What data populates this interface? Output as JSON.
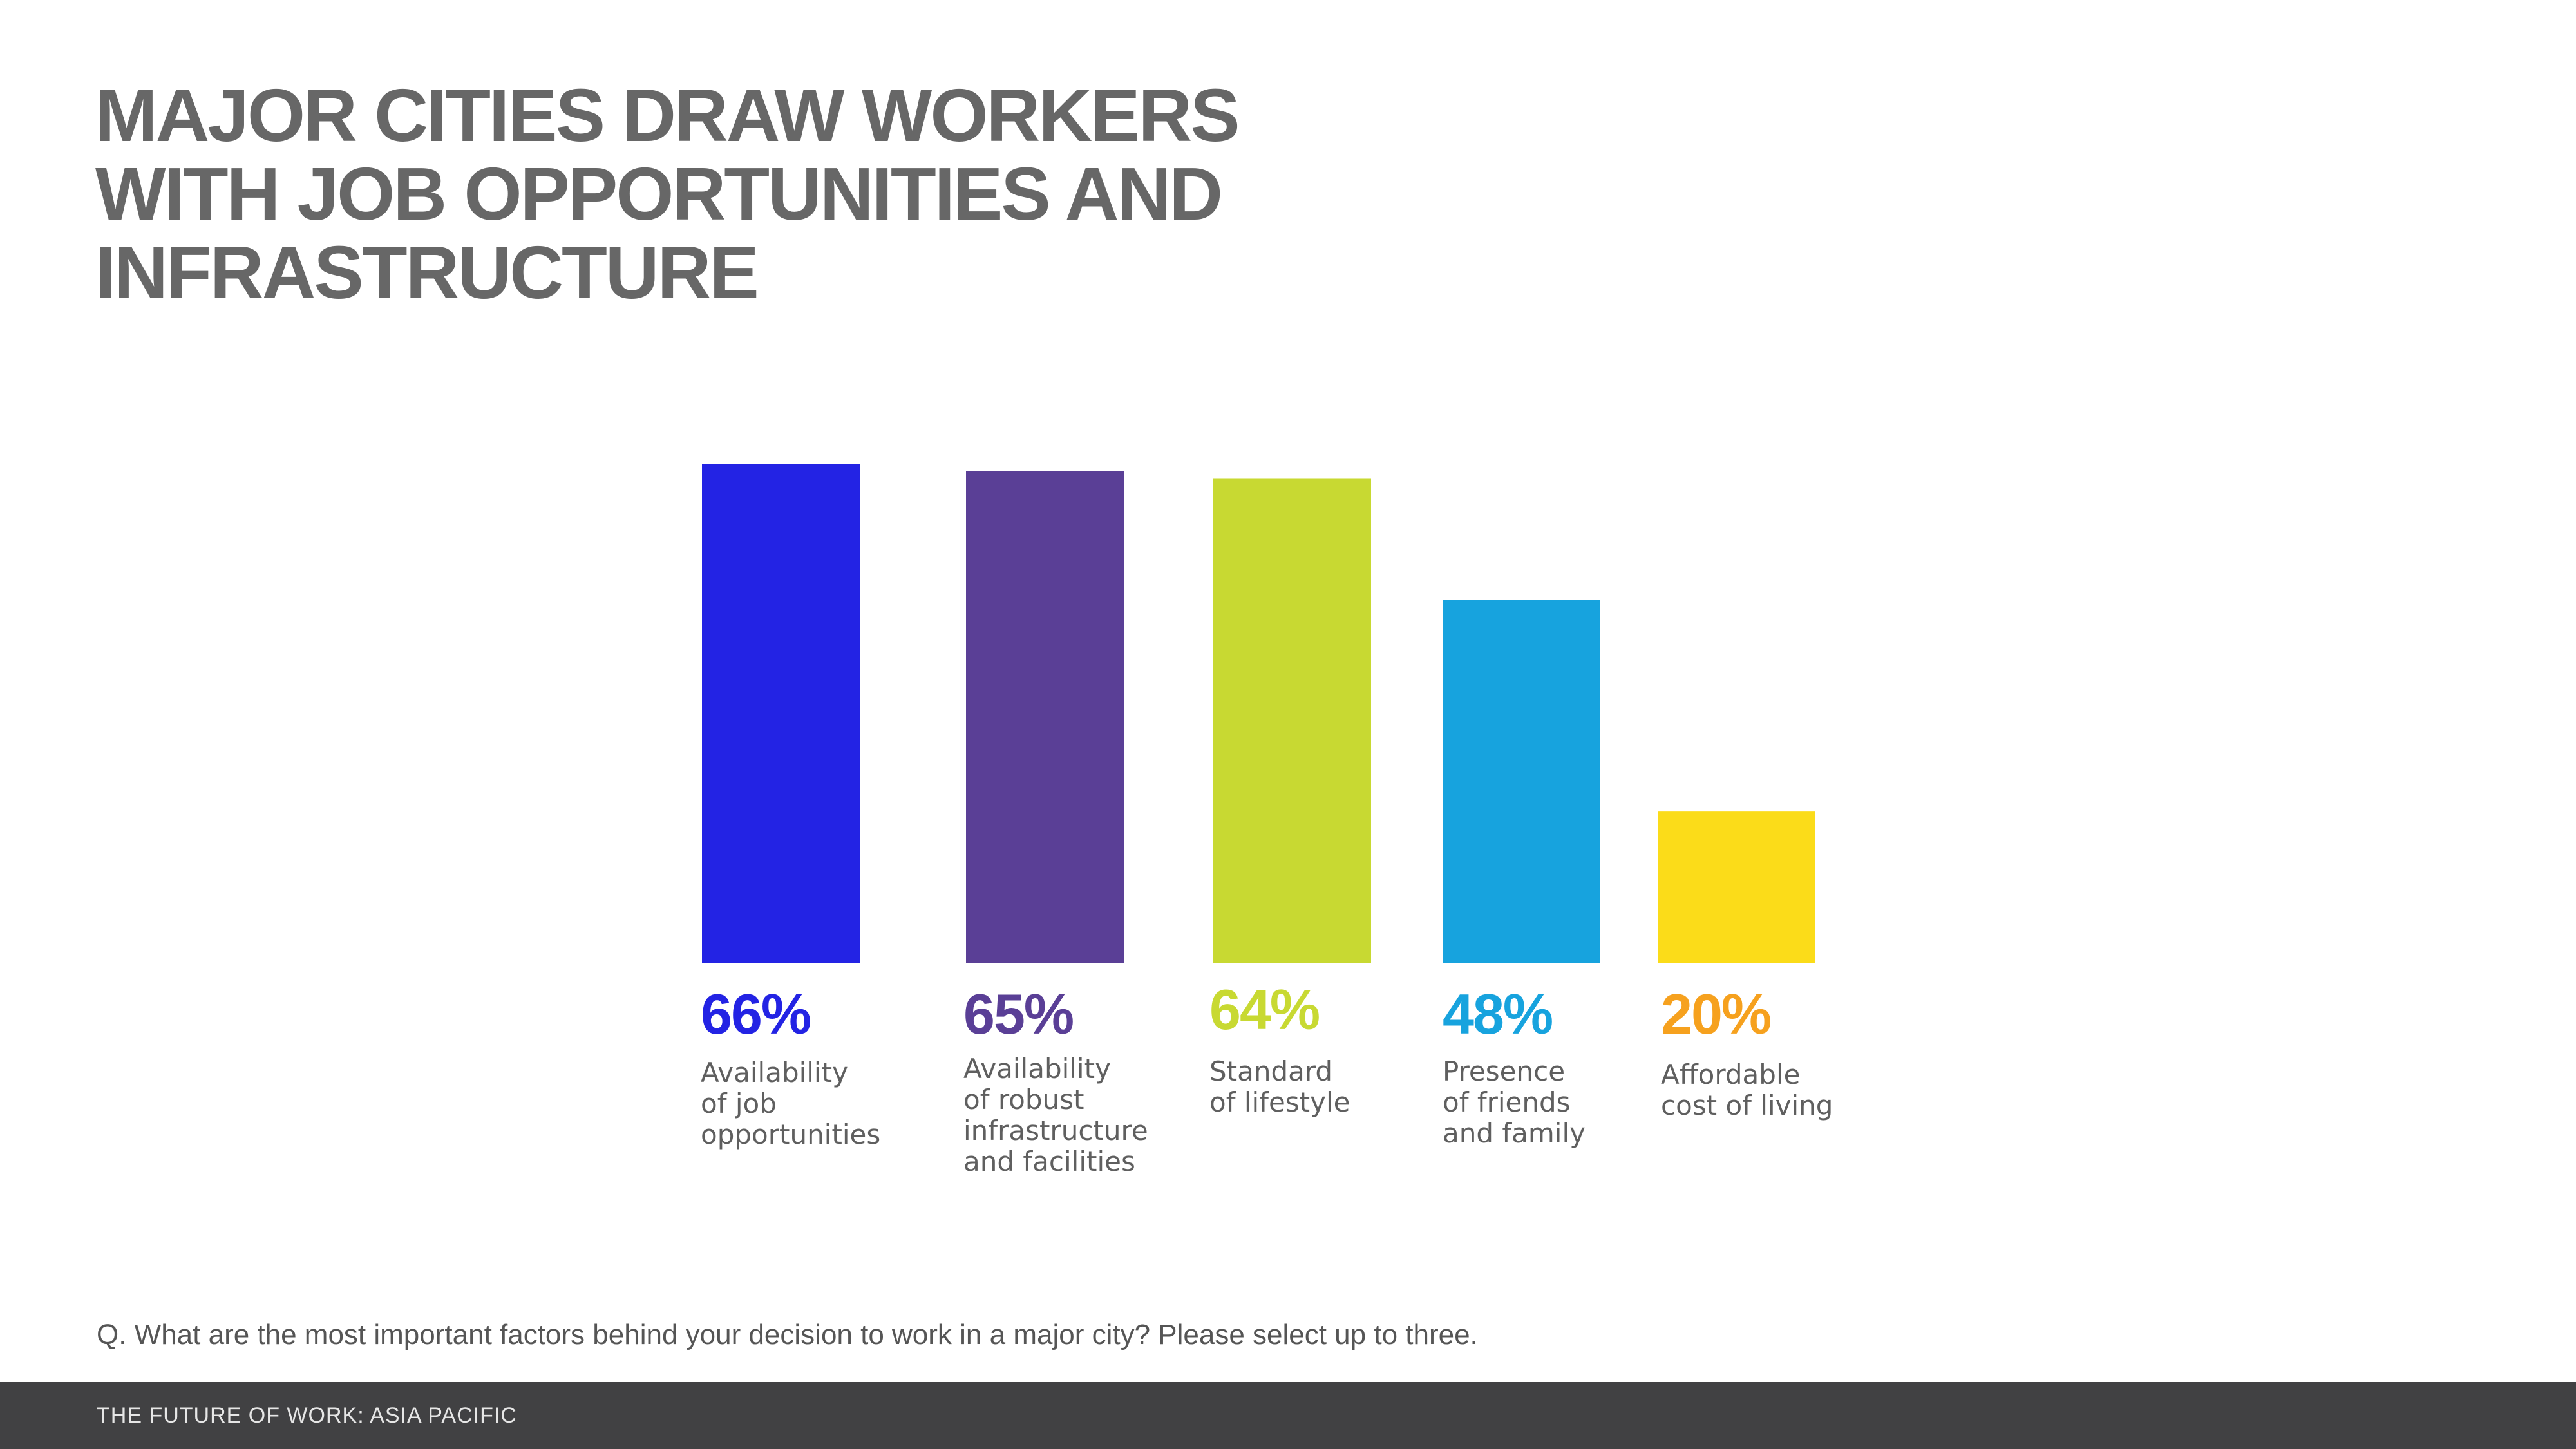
{
  "title_lines": [
    "MAJOR CITIES DRAW WORKERS",
    "WITH JOB OPPORTUNITIES AND",
    "INFRASTRUCTURE"
  ],
  "question": "Q. What are the most important factors behind your decision to work in a major city? Please select up to three.",
  "footer": {
    "text": "THE FUTURE OF WORK: ASIA PACIFIC"
  },
  "chart_data": {
    "type": "bar",
    "title": "MAJOR CITIES DRAW WORKERS WITH JOB OPPORTUNITIES AND INFRASTRUCTURE",
    "xlabel": "",
    "ylabel": "",
    "grid": false,
    "legend": "none",
    "categories": [
      "Availability of job opportunities",
      "Availability of robust infrastructure and facilities",
      "Standard of lifestyle",
      "Presence of friends and family",
      "Affordable cost of living"
    ],
    "category_lines": [
      [
        "Availability",
        "of job",
        "opportunities"
      ],
      [
        "Availability",
        "of robust",
        "infrastructure",
        "and facilities"
      ],
      [
        "Standard",
        "of lifestyle"
      ],
      [
        "Presence",
        "of friends",
        "and family"
      ],
      [
        "Affordable",
        "cost of living"
      ]
    ],
    "values": [
      66,
      65,
      64,
      48,
      20
    ],
    "value_labels": [
      "66%",
      "65%",
      "64%",
      "48%",
      "20%"
    ],
    "unit": "%",
    "bar_colors": [
      "#2323E4",
      "#5A3F96",
      "#C8D932",
      "#17A3DE",
      "#FBDC19"
    ],
    "value_label_colors": [
      "#2323E4",
      "#5A3F96",
      "#C8D932",
      "#17A3DE",
      "#F6A11E"
    ]
  }
}
